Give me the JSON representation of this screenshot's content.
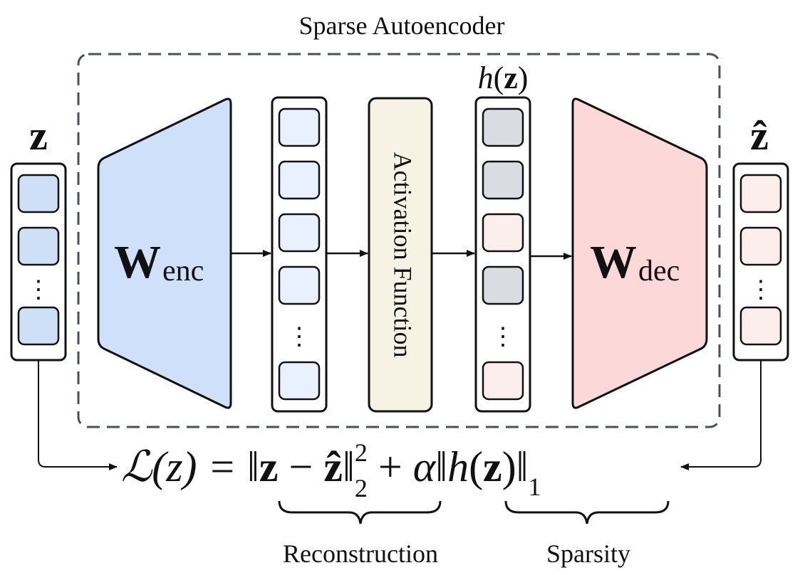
{
  "title": "Sparse Autoencoder",
  "input_label": "z",
  "output_label": "ẑ",
  "encoder": {
    "symbol": "W",
    "subscript": "enc"
  },
  "decoder": {
    "symbol": "W",
    "subscript": "dec"
  },
  "activation_label": "Activation Function",
  "hidden_label": {
    "func": "h",
    "open": "(",
    "var": "z",
    "close": ")"
  },
  "ellipsis": "⋮",
  "loss": {
    "lhs": "ℒ(z) = ",
    "norm_open": "‖",
    "z": "z",
    "minus": " − ",
    "zhat": "ẑ",
    "norm_close": "‖",
    "sup": "2",
    "sub": "2",
    "plus": " + ",
    "alpha": "α",
    "h": "h",
    "paren_open": "(",
    "paren_close": ")",
    "sub1": "1"
  },
  "brace_labels": {
    "reconstruction": "Reconstruction",
    "sparsity": "Sparsity"
  },
  "colors": {
    "encoder_fill": "#cfe0fb",
    "decoder_fill": "#fdd8d8",
    "input_cell": "#cde0f7",
    "latent_cell": "#e8f1fd",
    "inactive_cell": "#d9dce0",
    "active_cell": "#fdeeee",
    "output_cell": "#fdeeee",
    "activation_fill": "#f6f3e4",
    "stroke": "#111111",
    "dash_border": "#4a5058"
  }
}
